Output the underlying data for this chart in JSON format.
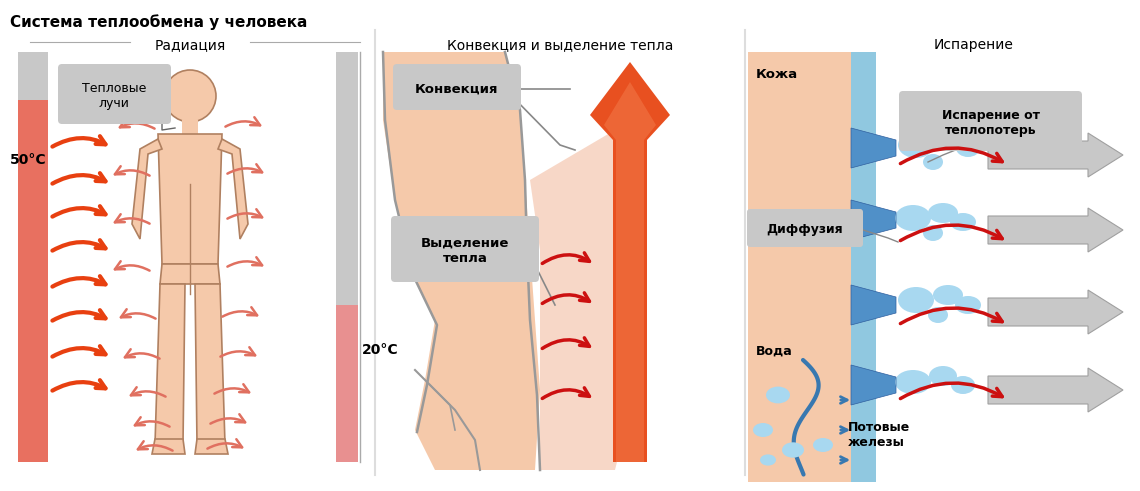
{
  "title": "Система теплообмена у человека",
  "panel1_title": "Радиация",
  "panel2_title": "Конвекция и выделение тепла",
  "panel3_title": "Испарение",
  "label_teplovye": "Тепловые\nлучи",
  "label_50c": "50°C",
  "label_20c": "20°C",
  "label_konvekciya": "Конвекция",
  "label_vydelenie": "Выделение\nтепла",
  "label_kozha": "Кожа",
  "label_diffuziya": "Диффузия",
  "label_voda": "Вода",
  "label_potovye": "Потовые\nжелезы",
  "label_isparenie_ot": "Испарение от\nтеплопотерь",
  "bg_color": "#ffffff",
  "skin_color": "#f5c9aa",
  "body_outline": "#b08060",
  "red_hot": "#e84010",
  "orange_arrow": "#e85020",
  "pink_arrow": "#e07060",
  "gray_bar": "#c8c8c8",
  "pink_bar": "#e89090",
  "label_box": "#c8c8c8",
  "blue_duct": "#90c8e0",
  "blue_dark": "#3878b0",
  "red_wave": "#cc1010",
  "gray_arrow_color": "#c0c0c0"
}
